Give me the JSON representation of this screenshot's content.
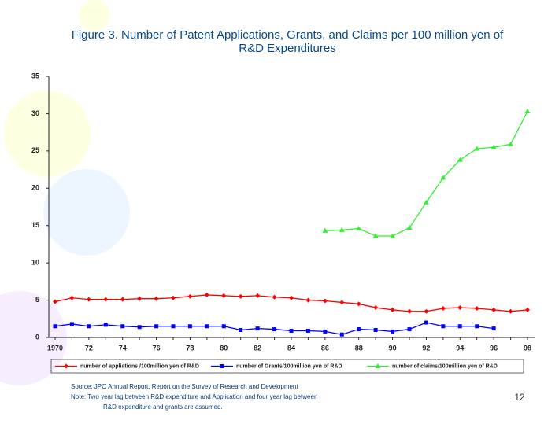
{
  "chart_data": {
    "type": "line",
    "title": "Figure 3. Number of Patent Applications, Grants, and Claims per 100 million yen of R&D Expenditures",
    "categories": [
      "1970",
      null,
      "72",
      null,
      "74",
      null,
      "76",
      null,
      "78",
      null,
      "80",
      null,
      "82",
      null,
      "84",
      null,
      "86",
      null,
      "88",
      null,
      "90",
      null,
      "92",
      null,
      "94",
      null,
      "96",
      null,
      "98"
    ],
    "series": [
      {
        "name": "number of appliations /100million yen of R&D",
        "color": "#ff0000",
        "marker": "diamond",
        "values": [
          4.8,
          5.3,
          5.1,
          5.1,
          5.1,
          5.2,
          5.2,
          5.3,
          5.5,
          5.7,
          5.6,
          5.5,
          5.6,
          5.4,
          5.3,
          5.0,
          4.9,
          4.7,
          4.5,
          4.0,
          3.7,
          3.5,
          3.5,
          3.9,
          4.0,
          3.9,
          3.7,
          3.5,
          3.7
        ]
      },
      {
        "name": "number of Grants/100million yen of R&D",
        "color": "#0000ff",
        "marker": "square",
        "values": [
          1.5,
          1.8,
          1.5,
          1.7,
          1.5,
          1.4,
          1.5,
          1.5,
          1.5,
          1.5,
          1.5,
          1.0,
          1.2,
          1.1,
          0.9,
          0.9,
          0.8,
          0.4,
          1.1,
          1.0,
          0.8,
          1.1,
          2.0,
          1.5,
          1.5,
          1.5,
          1.2,
          null,
          null
        ]
      },
      {
        "name": "number of claims/100million yen of R&D",
        "color": "#33ee33",
        "marker": "triangle",
        "values": [
          null,
          null,
          null,
          null,
          null,
          null,
          null,
          null,
          null,
          null,
          null,
          null,
          null,
          null,
          null,
          null,
          14.3,
          14.4,
          14.6,
          13.6,
          13.6,
          14.7,
          18.1,
          21.4,
          23.8,
          25.3,
          25.5,
          25.9,
          30.3
        ]
      }
    ],
    "ylim": [
      0,
      35
    ],
    "yticks": [
      0,
      5,
      10,
      15,
      20,
      25,
      30,
      35
    ],
    "grid": false,
    "legend": "bottom"
  },
  "footer": {
    "notes": [
      "Source: JPO Annual Report, Report on the Survey of Research and Development",
      "Note:   Two year lag between R&D expenditure and Application and four year lag between",
      "R&D expenditure and grants are assumed."
    ],
    "page_number": "12"
  }
}
